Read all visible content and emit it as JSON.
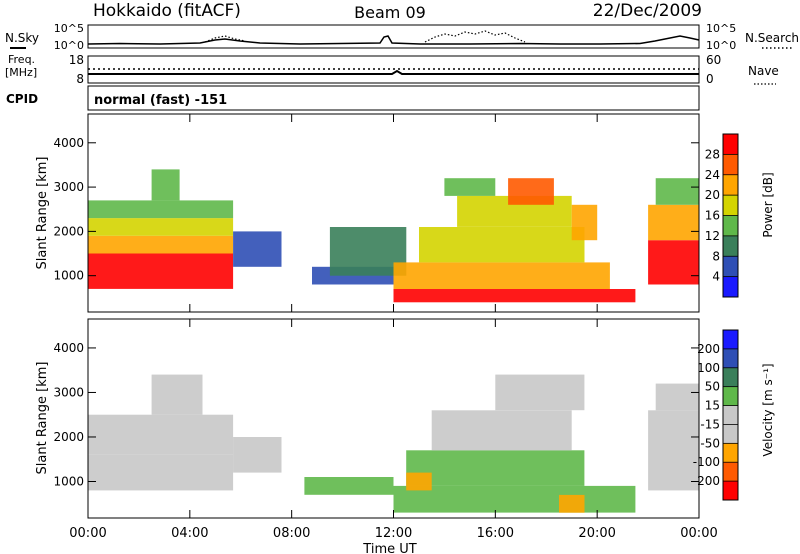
{
  "header": {
    "station": "Hokkaido (fitACF)",
    "beam": "Beam 09",
    "date": "22/Dec/2009"
  },
  "noise_panel": {
    "left_label": "N.Sky",
    "left_ticks": [
      "10^5",
      "10^0"
    ],
    "right_ticks": [
      "10^5",
      "10^0"
    ],
    "right_label": "N.Search"
  },
  "freq_panel": {
    "left_label_top": "Freq.",
    "left_label_bottom": "[MHz]",
    "left_ticks": [
      "18",
      "8"
    ],
    "right_ticks": [
      "60",
      "0"
    ],
    "right_label": "Nave"
  },
  "cpid_panel": {
    "label": "CPID",
    "value": "normal (fast) -151"
  },
  "colors": {
    "power": [
      "#1a1aff",
      "#2f4fb5",
      "#3a7f5a",
      "#5fb84a",
      "#d4d400",
      "#ffa500",
      "#ff5a00",
      "#ff0000"
    ],
    "velocity": [
      "#ff0000",
      "#ff5a00",
      "#ffa500",
      "#c8c8c8",
      "#c8c8c8",
      "#5fb84a",
      "#3a7f5a",
      "#2f4fb5",
      "#1a1aff"
    ]
  },
  "chart_data": [
    {
      "type": "heatmap",
      "quantity": "Power",
      "xlabel": "",
      "ylabel": "Slant Range [km]",
      "x_ticks": [
        "00:00",
        "04:00",
        "08:00",
        "12:00",
        "16:00",
        "20:00",
        "00:00"
      ],
      "x_hours": [
        0,
        4,
        8,
        12,
        16,
        20,
        24
      ],
      "y_ticks": [
        1000,
        2000,
        3000,
        4000
      ],
      "xlim": [
        0,
        24
      ],
      "ylim": [
        180,
        4650
      ],
      "colorbar_label": "Power [dB]",
      "colorbar_ticks": [
        4,
        8,
        12,
        16,
        20,
        24,
        28
      ],
      "colorbar_range": [
        0,
        32
      ],
      "regions": [
        {
          "t0": 0.0,
          "t1": 5.7,
          "r0": 700,
          "r1": 1500,
          "value": 30
        },
        {
          "t0": 0.0,
          "t1": 5.7,
          "r0": 1500,
          "r1": 1900,
          "value": 22
        },
        {
          "t0": 0.0,
          "t1": 5.7,
          "r0": 1900,
          "r1": 2300,
          "value": 16
        },
        {
          "t0": 0.0,
          "t1": 5.7,
          "r0": 2300,
          "r1": 2700,
          "value": 12
        },
        {
          "t0": 2.5,
          "t1": 3.6,
          "r0": 2700,
          "r1": 3400,
          "value": 14
        },
        {
          "t0": 5.7,
          "t1": 7.6,
          "r0": 1200,
          "r1": 2000,
          "value": 7
        },
        {
          "t0": 8.8,
          "t1": 12.0,
          "r0": 800,
          "r1": 1200,
          "value": 6
        },
        {
          "t0": 9.5,
          "t1": 12.5,
          "r0": 1000,
          "r1": 2100,
          "value": 10
        },
        {
          "t0": 12.0,
          "t1": 21.5,
          "r0": 400,
          "r1": 700,
          "value": 30
        },
        {
          "t0": 12.0,
          "t1": 20.5,
          "r0": 700,
          "r1": 1300,
          "value": 22
        },
        {
          "t0": 13.0,
          "t1": 19.5,
          "r0": 1300,
          "r1": 2100,
          "value": 16
        },
        {
          "t0": 14.5,
          "t1": 19.0,
          "r0": 2100,
          "r1": 2800,
          "value": 18
        },
        {
          "t0": 16.5,
          "t1": 18.3,
          "r0": 2600,
          "r1": 3200,
          "value": 26
        },
        {
          "t0": 14.0,
          "t1": 16.0,
          "r0": 2800,
          "r1": 3200,
          "value": 12
        },
        {
          "t0": 19.0,
          "t1": 20.0,
          "r0": 1800,
          "r1": 2600,
          "value": 20
        },
        {
          "t0": 22.0,
          "t1": 24.0,
          "r0": 800,
          "r1": 1800,
          "value": 30
        },
        {
          "t0": 22.0,
          "t1": 24.0,
          "r0": 1800,
          "r1": 2600,
          "value": 22
        },
        {
          "t0": 22.3,
          "t1": 24.0,
          "r0": 2600,
          "r1": 3200,
          "value": 14
        }
      ]
    },
    {
      "type": "heatmap",
      "quantity": "Velocity",
      "xlabel": "Time UT",
      "ylabel": "Slant Range [km]",
      "x_ticks": [
        "00:00",
        "04:00",
        "08:00",
        "12:00",
        "16:00",
        "20:00",
        "00:00"
      ],
      "x_hours": [
        0,
        4,
        8,
        12,
        16,
        20,
        24
      ],
      "y_ticks": [
        1000,
        2000,
        3000,
        4000
      ],
      "xlim": [
        0,
        24
      ],
      "ylim": [
        180,
        4650
      ],
      "colorbar_label": "Velocity [m s⁻¹]",
      "colorbar_ticks": [
        "200",
        "100",
        "50",
        "15",
        "-15",
        "-50",
        "-100",
        "-200"
      ],
      "regions": [
        {
          "t0": 0.0,
          "t1": 5.7,
          "r0": 800,
          "r1": 1600,
          "value": 0
        },
        {
          "t0": 0.0,
          "t1": 5.7,
          "r0": 1600,
          "r1": 2500,
          "value": 0
        },
        {
          "t0": 2.5,
          "t1": 4.5,
          "r0": 2500,
          "r1": 3400,
          "value": 0
        },
        {
          "t0": 5.7,
          "t1": 7.6,
          "r0": 1200,
          "r1": 2000,
          "value": 0
        },
        {
          "t0": 8.5,
          "t1": 12.0,
          "r0": 700,
          "r1": 1100,
          "value": 40
        },
        {
          "t0": 12.0,
          "t1": 21.5,
          "r0": 300,
          "r1": 900,
          "value": 40
        },
        {
          "t0": 12.5,
          "t1": 19.5,
          "r0": 900,
          "r1": 1700,
          "value": 40
        },
        {
          "t0": 13.5,
          "t1": 19.0,
          "r0": 1700,
          "r1": 2600,
          "value": 30
        },
        {
          "t0": 16.0,
          "t1": 19.5,
          "r0": 2600,
          "r1": 3400,
          "value": 0
        },
        {
          "t0": 12.5,
          "t1": 13.5,
          "r0": 800,
          "r1": 1200,
          "value": -40
        },
        {
          "t0": 18.5,
          "t1": 19.5,
          "r0": 300,
          "r1": 700,
          "value": -40
        },
        {
          "t0": 22.0,
          "t1": 24.0,
          "r0": 800,
          "r1": 2600,
          "value": 0
        },
        {
          "t0": 22.3,
          "t1": 24.0,
          "r0": 2600,
          "r1": 3200,
          "value": 0
        }
      ]
    }
  ]
}
